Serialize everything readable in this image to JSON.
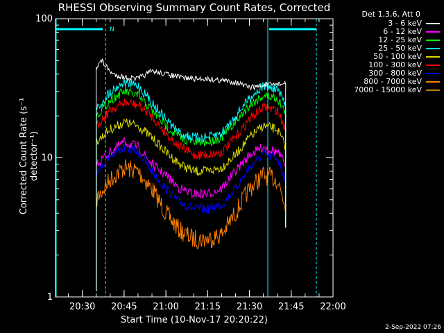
{
  "chart_data": {
    "type": "line",
    "title": "RHESSI Observing Summary Count Rates, Corrected",
    "xlabel": "Start Time (10-Nov-17 20:20:22)",
    "ylabel": "Corrected Count Rate (s⁻¹ detector⁻¹)",
    "y_scale": "log",
    "ylim": [
      1,
      100
    ],
    "xlim": [
      "20:20:22",
      "22:00"
    ],
    "x_ticks": [
      "20:30",
      "20:45",
      "21:00",
      "21:15",
      "21:30",
      "21:45",
      "22:00"
    ],
    "y_ticks": [
      "1",
      "10",
      "100"
    ],
    "legend_header": "Det 1,3,6, Att 0",
    "legend_position": "outside-right",
    "annotations": [
      "N"
    ],
    "series": [
      {
        "name": "3 - 6 keV",
        "color": "#ffffff",
        "x": [
          "20:35",
          "20:37",
          "20:39",
          "20:41",
          "20:45",
          "20:50",
          "20:55",
          "21:00",
          "21:05",
          "21:10",
          "21:15",
          "21:20",
          "21:25",
          "21:30",
          "21:35",
          "21:40",
          "21:43"
        ],
        "values": [
          45,
          50,
          44,
          40,
          38,
          37,
          42,
          40,
          38,
          37,
          37,
          36,
          35,
          32,
          33,
          34,
          34
        ]
      },
      {
        "name": "6 - 12 keV",
        "color": "#ff00ff",
        "x": [
          "20:35",
          "20:40",
          "20:45",
          "20:50",
          "20:55",
          "21:00",
          "21:05",
          "21:10",
          "21:15",
          "21:20",
          "21:25",
          "21:30",
          "21:35",
          "21:40",
          "21:43"
        ],
        "values": [
          9,
          11,
          13,
          12,
          9,
          7.5,
          6,
          5.5,
          5.5,
          6,
          8,
          10.5,
          12,
          11,
          9
        ]
      },
      {
        "name": "12 - 25 keV",
        "color": "#00ff00",
        "x": [
          "20:35",
          "20:40",
          "20:45",
          "20:50",
          "20:55",
          "21:00",
          "21:05",
          "21:10",
          "21:15",
          "21:20",
          "21:25",
          "21:30",
          "21:35",
          "21:40",
          "21:43"
        ],
        "values": [
          20,
          26,
          30,
          28,
          22,
          17,
          14,
          13,
          13,
          14,
          18,
          24,
          28,
          27,
          21
        ]
      },
      {
        "name": "25 - 50 keV",
        "color": "#00ffff",
        "x": [
          "20:35",
          "20:40",
          "20:45",
          "20:50",
          "20:55",
          "21:00",
          "21:05",
          "21:10",
          "21:15",
          "21:20",
          "21:25",
          "21:30",
          "21:35",
          "21:40",
          "21:43"
        ],
        "values": [
          22,
          30,
          35,
          33,
          25,
          19,
          15,
          14,
          14,
          15,
          20,
          27,
          33,
          31,
          24
        ]
      },
      {
        "name": "50 - 100 keV",
        "color": "#dddd00",
        "x": [
          "20:35",
          "20:40",
          "20:45",
          "20:50",
          "20:55",
          "21:00",
          "21:05",
          "21:10",
          "21:15",
          "21:20",
          "21:25",
          "21:30",
          "21:35",
          "21:40",
          "21:43"
        ],
        "values": [
          13,
          16,
          18,
          17,
          14,
          11,
          9,
          8,
          8,
          8.5,
          10.5,
          14,
          17,
          16,
          12
        ]
      },
      {
        "name": "100 - 300 keV",
        "color": "#ff0000",
        "x": [
          "20:35",
          "20:40",
          "20:45",
          "20:50",
          "20:55",
          "21:00",
          "21:05",
          "21:10",
          "21:15",
          "21:20",
          "21:25",
          "21:30",
          "21:35",
          "21:40",
          "21:43"
        ],
        "values": [
          17,
          22,
          25,
          24,
          20,
          15,
          12,
          10.5,
          10.5,
          11,
          14,
          19,
          23,
          22,
          16
        ]
      },
      {
        "name": "300 - 800 keV",
        "color": "#0000ff",
        "x": [
          "20:35",
          "20:40",
          "20:45",
          "20:50",
          "20:55",
          "21:00",
          "21:05",
          "21:10",
          "21:15",
          "21:20",
          "21:25",
          "21:30",
          "21:35",
          "21:40",
          "21:43"
        ],
        "values": [
          8,
          10.5,
          12,
          11,
          8,
          6,
          4.8,
          4.3,
          4.3,
          4.6,
          6,
          8.5,
          10.5,
          10,
          7
        ]
      },
      {
        "name": "800 - 7000 keV",
        "color": "#ff8000",
        "x": [
          "20:35",
          "20:40",
          "20:45",
          "20:50",
          "20:55",
          "21:00",
          "21:05",
          "21:10",
          "21:15",
          "21:20",
          "21:25",
          "21:30",
          "21:35",
          "21:40",
          "21:43"
        ],
        "values": [
          5,
          7,
          8.5,
          8,
          6,
          4,
          3,
          2.6,
          2.6,
          2.8,
          4,
          6,
          7.5,
          7,
          4.5
        ]
      },
      {
        "name": "7000 - 15000 keV",
        "color": "#c08000",
        "x": [],
        "values": []
      }
    ]
  },
  "page": {
    "footer_date": "2-Sep-2022 07:26"
  }
}
